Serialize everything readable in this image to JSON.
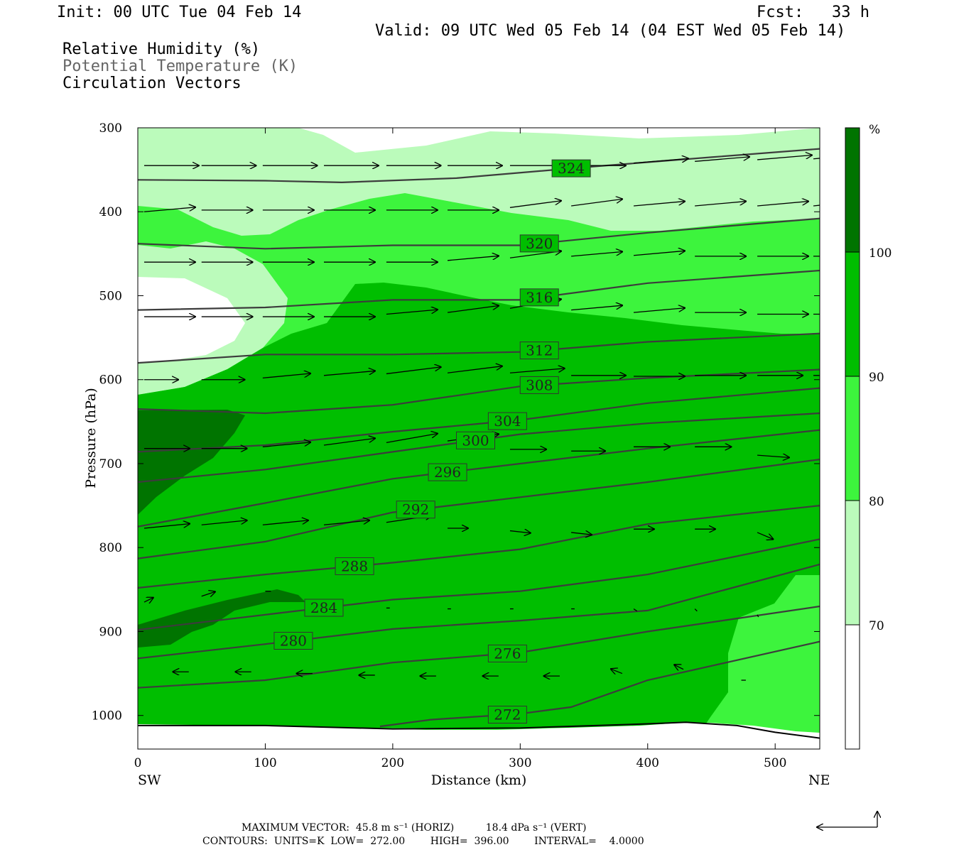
{
  "header": {
    "init": "Init: 00 UTC Tue 04 Feb 14",
    "fcst": "Fcst:   33 h",
    "valid": "Valid: 09 UTC Wed 05 Feb 14 (04 EST Wed 05 Feb 14)",
    "field1": "Relative Humidity (%)",
    "field2": "Potential Temperature (K)",
    "field3": "Circulation Vectors"
  },
  "footer": {
    "max_vector": "MAXIMUM VECTOR:  45.8 m s⁻¹ (HORIZ)          18.4 dPa s⁻¹ (VERT)",
    "contours": "CONTOURS:  UNITS=K  LOW=  272.00        HIGH=  396.00        INTERVAL=    4.0000"
  },
  "colors": {
    "rh_70_80": "#bbfbbb",
    "rh_80_90": "#3df43d",
    "rh_90_100": "#00be00",
    "rh_100": "#007400",
    "theta_line": "#3c3c3c"
  },
  "chart_data": {
    "type": "heatmap",
    "xlabel": "Distance (km)",
    "ylabel": "Pressure (hPa)",
    "x_ticks": [
      0,
      100,
      200,
      300,
      400,
      500
    ],
    "y_ticks": [
      300,
      400,
      500,
      600,
      700,
      800,
      900,
      1000
    ],
    "xlim": [
      0,
      535
    ],
    "ylim": [
      1040,
      300
    ],
    "left_end_label": "SW",
    "right_end_label": "NE",
    "colorbar": {
      "unit": "%",
      "levels": [
        70,
        80,
        90,
        100
      ],
      "tick_labels": [
        "70",
        "80",
        "90",
        "100"
      ]
    },
    "theta_contours": [
      {
        "label": "324",
        "label_x": 340,
        "points": [
          [
            0,
            362
          ],
          [
            100,
            363
          ],
          [
            160,
            365
          ],
          [
            250,
            360
          ],
          [
            350,
            347
          ],
          [
            450,
            335
          ],
          [
            535,
            325
          ]
        ]
      },
      {
        "label": "320",
        "label_x": 315,
        "points": [
          [
            0,
            438
          ],
          [
            100,
            444
          ],
          [
            200,
            440
          ],
          [
            300,
            440
          ],
          [
            400,
            425
          ],
          [
            535,
            408
          ]
        ]
      },
      {
        "label": "316",
        "label_x": 315,
        "points": [
          [
            0,
            517
          ],
          [
            100,
            514
          ],
          [
            200,
            505
          ],
          [
            300,
            505
          ],
          [
            400,
            485
          ],
          [
            535,
            470
          ]
        ]
      },
      {
        "label": "312",
        "label_x": 315,
        "points": [
          [
            0,
            580
          ],
          [
            100,
            570
          ],
          [
            200,
            570
          ],
          [
            300,
            567
          ],
          [
            400,
            555
          ],
          [
            535,
            545
          ]
        ]
      },
      {
        "label": "308",
        "label_x": 315,
        "points": [
          [
            0,
            635
          ],
          [
            100,
            640
          ],
          [
            200,
            630
          ],
          [
            300,
            608
          ],
          [
            400,
            598
          ],
          [
            535,
            588
          ]
        ]
      },
      {
        "label": "304",
        "label_x": 290,
        "points": [
          [
            0,
            686
          ],
          [
            100,
            678
          ],
          [
            200,
            662
          ],
          [
            300,
            648
          ],
          [
            400,
            628
          ],
          [
            535,
            610
          ]
        ]
      },
      {
        "label": "300",
        "label_x": 265,
        "points": [
          [
            0,
            722
          ],
          [
            100,
            707
          ],
          [
            200,
            686
          ],
          [
            300,
            665
          ],
          [
            400,
            652
          ],
          [
            535,
            640
          ]
        ]
      },
      {
        "label": "296",
        "label_x": 243,
        "points": [
          [
            0,
            775
          ],
          [
            100,
            747
          ],
          [
            200,
            718
          ],
          [
            300,
            700
          ],
          [
            400,
            682
          ],
          [
            535,
            660
          ]
        ]
      },
      {
        "label": "292",
        "label_x": 218,
        "points": [
          [
            0,
            813
          ],
          [
            100,
            793
          ],
          [
            200,
            758
          ],
          [
            300,
            740
          ],
          [
            400,
            722
          ],
          [
            535,
            695
          ]
        ]
      },
      {
        "label": "288",
        "label_x": 170,
        "points": [
          [
            0,
            848
          ],
          [
            100,
            832
          ],
          [
            200,
            818
          ],
          [
            300,
            802
          ],
          [
            400,
            772
          ],
          [
            535,
            750
          ]
        ]
      },
      {
        "label": "284",
        "label_x": 146,
        "points": [
          [
            0,
            898
          ],
          [
            100,
            880
          ],
          [
            200,
            862
          ],
          [
            300,
            852
          ],
          [
            400,
            832
          ],
          [
            535,
            790
          ]
        ]
      },
      {
        "label": "280",
        "label_x": 122,
        "points": [
          [
            0,
            932
          ],
          [
            100,
            915
          ],
          [
            200,
            897
          ],
          [
            300,
            887
          ],
          [
            400,
            875
          ],
          [
            535,
            820
          ]
        ]
      },
      {
        "label": "276",
        "label_x": 290,
        "points": [
          [
            0,
            967
          ],
          [
            100,
            958
          ],
          [
            200,
            937
          ],
          [
            300,
            925
          ],
          [
            400,
            900
          ],
          [
            535,
            870
          ]
        ]
      },
      {
        "label": "272",
        "label_x": 290,
        "points": [
          [
            190,
            1013
          ],
          [
            230,
            1005
          ],
          [
            300,
            998
          ],
          [
            340,
            990
          ],
          [
            400,
            958
          ],
          [
            535,
            912
          ]
        ]
      }
    ],
    "surface": [
      [
        0,
        1012
      ],
      [
        100,
        1012
      ],
      [
        200,
        1016
      ],
      [
        300,
        1015
      ],
      [
        400,
        1010
      ],
      [
        430,
        1008
      ],
      [
        470,
        1012
      ],
      [
        500,
        1020
      ],
      [
        535,
        1027
      ]
    ],
    "vectors": [
      {
        "x": 5,
        "y": 345,
        "u": 48,
        "w": 0
      },
      {
        "x": 50,
        "y": 345,
        "u": 48,
        "w": 0
      },
      {
        "x": 98,
        "y": 345,
        "u": 48,
        "w": 0
      },
      {
        "x": 146,
        "y": 345,
        "u": 48,
        "w": 0
      },
      {
        "x": 195,
        "y": 345,
        "u": 48,
        "w": 0
      },
      {
        "x": 243,
        "y": 345,
        "u": 48,
        "w": 0
      },
      {
        "x": 292,
        "y": 345,
        "u": 48,
        "w": 0
      },
      {
        "x": 340,
        "y": 345,
        "u": 48,
        "w": 0
      },
      {
        "x": 389,
        "y": 342,
        "u": 48,
        "w": 2
      },
      {
        "x": 437,
        "y": 340,
        "u": 48,
        "w": 2
      },
      {
        "x": 486,
        "y": 338,
        "u": 48,
        "w": 2
      },
      {
        "x": 530,
        "y": 337,
        "u": 45,
        "w": 2
      },
      {
        "x": 5,
        "y": 400,
        "u": 45,
        "w": 2
      },
      {
        "x": 50,
        "y": 398,
        "u": 45,
        "w": 0
      },
      {
        "x": 98,
        "y": 398,
        "u": 45,
        "w": 0
      },
      {
        "x": 146,
        "y": 398,
        "u": 45,
        "w": 0
      },
      {
        "x": 195,
        "y": 398,
        "u": 45,
        "w": 0
      },
      {
        "x": 243,
        "y": 398,
        "u": 45,
        "w": 0
      },
      {
        "x": 292,
        "y": 395,
        "u": 45,
        "w": 3
      },
      {
        "x": 340,
        "y": 393,
        "u": 45,
        "w": 3
      },
      {
        "x": 389,
        "y": 393,
        "u": 45,
        "w": 2
      },
      {
        "x": 437,
        "y": 393,
        "u": 45,
        "w": 2
      },
      {
        "x": 486,
        "y": 393,
        "u": 45,
        "w": 2
      },
      {
        "x": 530,
        "y": 393,
        "u": 40,
        "w": 2
      },
      {
        "x": 5,
        "y": 460,
        "u": 45,
        "w": 0
      },
      {
        "x": 50,
        "y": 460,
        "u": 45,
        "w": 0
      },
      {
        "x": 98,
        "y": 460,
        "u": 45,
        "w": 0
      },
      {
        "x": 146,
        "y": 460,
        "u": 45,
        "w": 0
      },
      {
        "x": 195,
        "y": 460,
        "u": 45,
        "w": 0
      },
      {
        "x": 243,
        "y": 458,
        "u": 45,
        "w": 2
      },
      {
        "x": 292,
        "y": 455,
        "u": 45,
        "w": 3
      },
      {
        "x": 340,
        "y": 453,
        "u": 45,
        "w": 2
      },
      {
        "x": 389,
        "y": 452,
        "u": 45,
        "w": 2
      },
      {
        "x": 437,
        "y": 453,
        "u": 45,
        "w": 0
      },
      {
        "x": 486,
        "y": 453,
        "u": 45,
        "w": 0
      },
      {
        "x": 530,
        "y": 453,
        "u": 40,
        "w": 0
      },
      {
        "x": 5,
        "y": 525,
        "u": 45,
        "w": 0
      },
      {
        "x": 50,
        "y": 525,
        "u": 45,
        "w": 0
      },
      {
        "x": 98,
        "y": 525,
        "u": 45,
        "w": 0
      },
      {
        "x": 146,
        "y": 525,
        "u": 45,
        "w": 0
      },
      {
        "x": 195,
        "y": 522,
        "u": 45,
        "w": 2
      },
      {
        "x": 243,
        "y": 520,
        "u": 45,
        "w": 3
      },
      {
        "x": 292,
        "y": 515,
        "u": 45,
        "w": 4
      },
      {
        "x": 340,
        "y": 517,
        "u": 45,
        "w": 2
      },
      {
        "x": 389,
        "y": 520,
        "u": 45,
        "w": 2
      },
      {
        "x": 437,
        "y": 520,
        "u": 45,
        "w": 0
      },
      {
        "x": 486,
        "y": 522,
        "u": 45,
        "w": 0
      },
      {
        "x": 530,
        "y": 522,
        "u": 40,
        "w": 0
      },
      {
        "x": 5,
        "y": 600,
        "u": 30,
        "w": 0
      },
      {
        "x": 50,
        "y": 600,
        "u": 38,
        "w": 0
      },
      {
        "x": 98,
        "y": 598,
        "u": 42,
        "w": 2
      },
      {
        "x": 146,
        "y": 595,
        "u": 45,
        "w": 2
      },
      {
        "x": 195,
        "y": 593,
        "u": 48,
        "w": 3
      },
      {
        "x": 243,
        "y": 592,
        "u": 48,
        "w": 3
      },
      {
        "x": 292,
        "y": 592,
        "u": 48,
        "w": 2
      },
      {
        "x": 340,
        "y": 595,
        "u": 48,
        "w": 0
      },
      {
        "x": 389,
        "y": 596,
        "u": 45,
        "w": 0
      },
      {
        "x": 437,
        "y": 595,
        "u": 45,
        "w": 0
      },
      {
        "x": 486,
        "y": 595,
        "u": 40,
        "w": 0
      },
      {
        "x": 530,
        "y": 595,
        "u": 30,
        "w": 0
      },
      {
        "x": 5,
        "y": 682,
        "u": 40,
        "w": 0
      },
      {
        "x": 50,
        "y": 682,
        "u": 40,
        "w": 0
      },
      {
        "x": 98,
        "y": 680,
        "u": 42,
        "w": 2
      },
      {
        "x": 146,
        "y": 678,
        "u": 45,
        "w": 3
      },
      {
        "x": 195,
        "y": 675,
        "u": 45,
        "w": 4
      },
      {
        "x": 243,
        "y": 673,
        "u": 45,
        "w": 3
      },
      {
        "x": 292,
        "y": 683,
        "u": 32,
        "w": 0
      },
      {
        "x": 340,
        "y": 685,
        "u": 30,
        "w": 0
      },
      {
        "x": 389,
        "y": 680,
        "u": 32,
        "w": 0
      },
      {
        "x": 437,
        "y": 680,
        "u": 32,
        "w": 0
      },
      {
        "x": 486,
        "y": 690,
        "u": 28,
        "w": -1
      },
      {
        "x": 5,
        "y": 777,
        "u": 40,
        "w": 2
      },
      {
        "x": 50,
        "y": 773,
        "u": 40,
        "w": 2
      },
      {
        "x": 98,
        "y": 773,
        "u": 40,
        "w": 2
      },
      {
        "x": 146,
        "y": 773,
        "u": 40,
        "w": 2
      },
      {
        "x": 195,
        "y": 770,
        "u": 40,
        "w": 3
      },
      {
        "x": 243,
        "y": 777,
        "u": 18,
        "w": 0
      },
      {
        "x": 292,
        "y": 780,
        "u": 18,
        "w": -1
      },
      {
        "x": 340,
        "y": 782,
        "u": 18,
        "w": -1
      },
      {
        "x": 389,
        "y": 778,
        "u": 18,
        "w": 0
      },
      {
        "x": 437,
        "y": 778,
        "u": 18,
        "w": 0
      },
      {
        "x": 486,
        "y": 782,
        "u": 14,
        "w": -3
      },
      {
        "x": 5,
        "y": 865,
        "u": 8,
        "w": 2
      },
      {
        "x": 50,
        "y": 858,
        "u": 12,
        "w": 2
      },
      {
        "x": 100,
        "y": 852,
        "u": 5,
        "w": 0
      },
      {
        "x": 195,
        "y": 872,
        "u": 3,
        "w": 0
      },
      {
        "x": 243,
        "y": 873,
        "u": 3,
        "w": 0
      },
      {
        "x": 292,
        "y": 873,
        "u": 3,
        "w": 0
      },
      {
        "x": 340,
        "y": 873,
        "u": 3,
        "w": 0
      },
      {
        "x": 389,
        "y": 873,
        "u": 3,
        "w": -1
      },
      {
        "x": 437,
        "y": 873,
        "u": 2,
        "w": -1
      },
      {
        "x": 486,
        "y": 880,
        "u": 1,
        "w": -1
      },
      {
        "x": 40,
        "y": 948,
        "u": -14,
        "w": 0
      },
      {
        "x": 89,
        "y": 948,
        "u": -14,
        "w": 0
      },
      {
        "x": 137,
        "y": 950,
        "u": -14,
        "w": 0
      },
      {
        "x": 186,
        "y": 952,
        "u": -14,
        "w": 0
      },
      {
        "x": 234,
        "y": 953,
        "u": -14,
        "w": 0
      },
      {
        "x": 283,
        "y": 953,
        "u": -14,
        "w": 0
      },
      {
        "x": 331,
        "y": 953,
        "u": -14,
        "w": 0
      },
      {
        "x": 380,
        "y": 950,
        "u": -10,
        "w": 2
      },
      {
        "x": 428,
        "y": 945,
        "u": -8,
        "w": 2
      },
      {
        "x": 477,
        "y": 958,
        "u": -4,
        "w": 0
      }
    ]
  }
}
